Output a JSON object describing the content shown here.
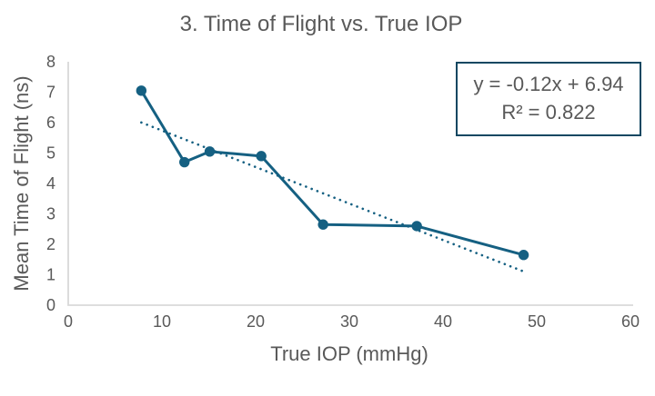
{
  "chart_data": {
    "type": "line",
    "title": "3. Time of Flight vs. True IOP",
    "xlabel": "True IOP (mmHg)",
    "ylabel": "Mean Time of Flight (ns)",
    "x": [
      7.8,
      12.4,
      15.1,
      20.6,
      27.2,
      37.2,
      48.6
    ],
    "y": [
      7.05,
      4.7,
      5.05,
      4.9,
      2.65,
      2.6,
      1.65
    ],
    "xlim": [
      0,
      60
    ],
    "ylim": [
      0,
      8
    ],
    "x_ticks": [
      0,
      10,
      20,
      30,
      40,
      50,
      60
    ],
    "y_ticks": [
      0,
      1,
      2,
      3,
      4,
      5,
      6,
      7,
      8
    ],
    "grid": false,
    "legend": "none",
    "series_color": "#156082",
    "axis_color": "#D9D9D9",
    "text_color": "#595959",
    "trendline": {
      "type": "linear",
      "slope": -0.12,
      "intercept": 6.94,
      "x_start": 7.8,
      "x_end": 48.6,
      "style": "dotted",
      "equation_label": "y = -0.12x + 6.94",
      "r_squared_label": "R² = 0.822",
      "box_border_color": "#0F4761"
    }
  }
}
